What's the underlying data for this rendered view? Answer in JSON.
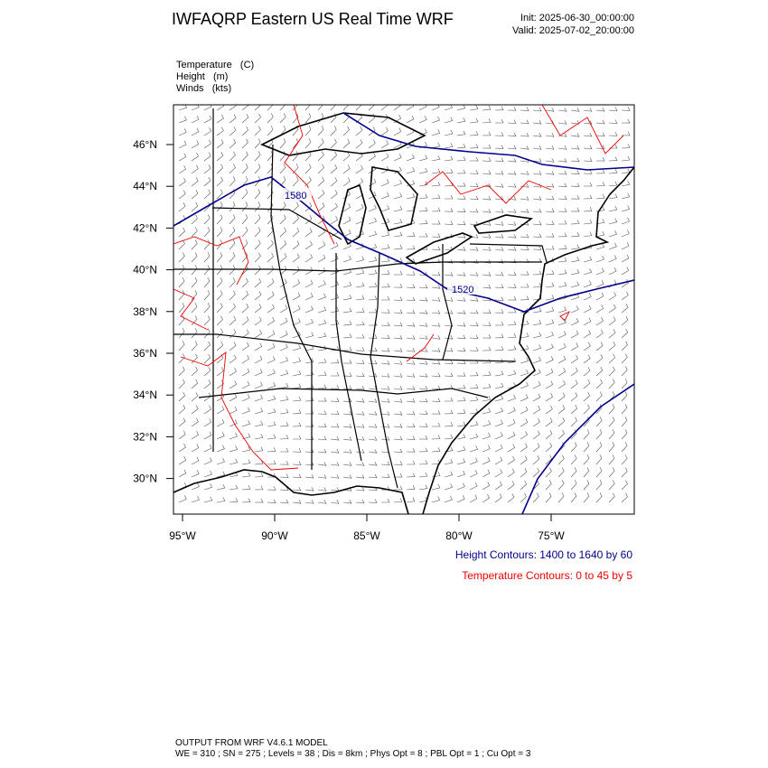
{
  "header": {
    "title": "IWFAQRP Eastern US Real Time WRF",
    "init": "Init: 2025-06-30_00:00:00",
    "valid": "Valid: 2025-07-02_20:00:00"
  },
  "fields": [
    "Temperature   (C)",
    "Height   (m)",
    "Winds   (kts)"
  ],
  "map": {
    "lat_ticks": [
      {
        "value": 46,
        "label": "46°N"
      },
      {
        "value": 44,
        "label": "44°N"
      },
      {
        "value": 42,
        "label": "42°N"
      },
      {
        "value": 40,
        "label": "40°N"
      },
      {
        "value": 38,
        "label": "38°N"
      },
      {
        "value": 36,
        "label": "36°N"
      },
      {
        "value": 34,
        "label": "34°N"
      },
      {
        "value": 32,
        "label": "32°N"
      },
      {
        "value": 30,
        "label": "30°N"
      }
    ],
    "lon_ticks": [
      {
        "value": -95,
        "label": "95°W"
      },
      {
        "value": -90,
        "label": "90°W"
      },
      {
        "value": -85,
        "label": "85°W"
      },
      {
        "value": -80,
        "label": "80°W"
      },
      {
        "value": -75,
        "label": "75°W"
      }
    ],
    "contour_labels": [
      "1580",
      "1520"
    ]
  },
  "legend": {
    "height": "Height Contours: 1400 to 1640 by 60",
    "temperature": "Temperature Contours: 0 to 45 by 5"
  },
  "footer": [
    "OUTPUT FROM WRF V4.6.1 MODEL",
    "WE = 310 ; SN = 275 ; Levels = 38 ; Dis = 8km ; Phys Opt = 8 ; PBL Opt = 1 ; Cu Opt = 3"
  ]
}
